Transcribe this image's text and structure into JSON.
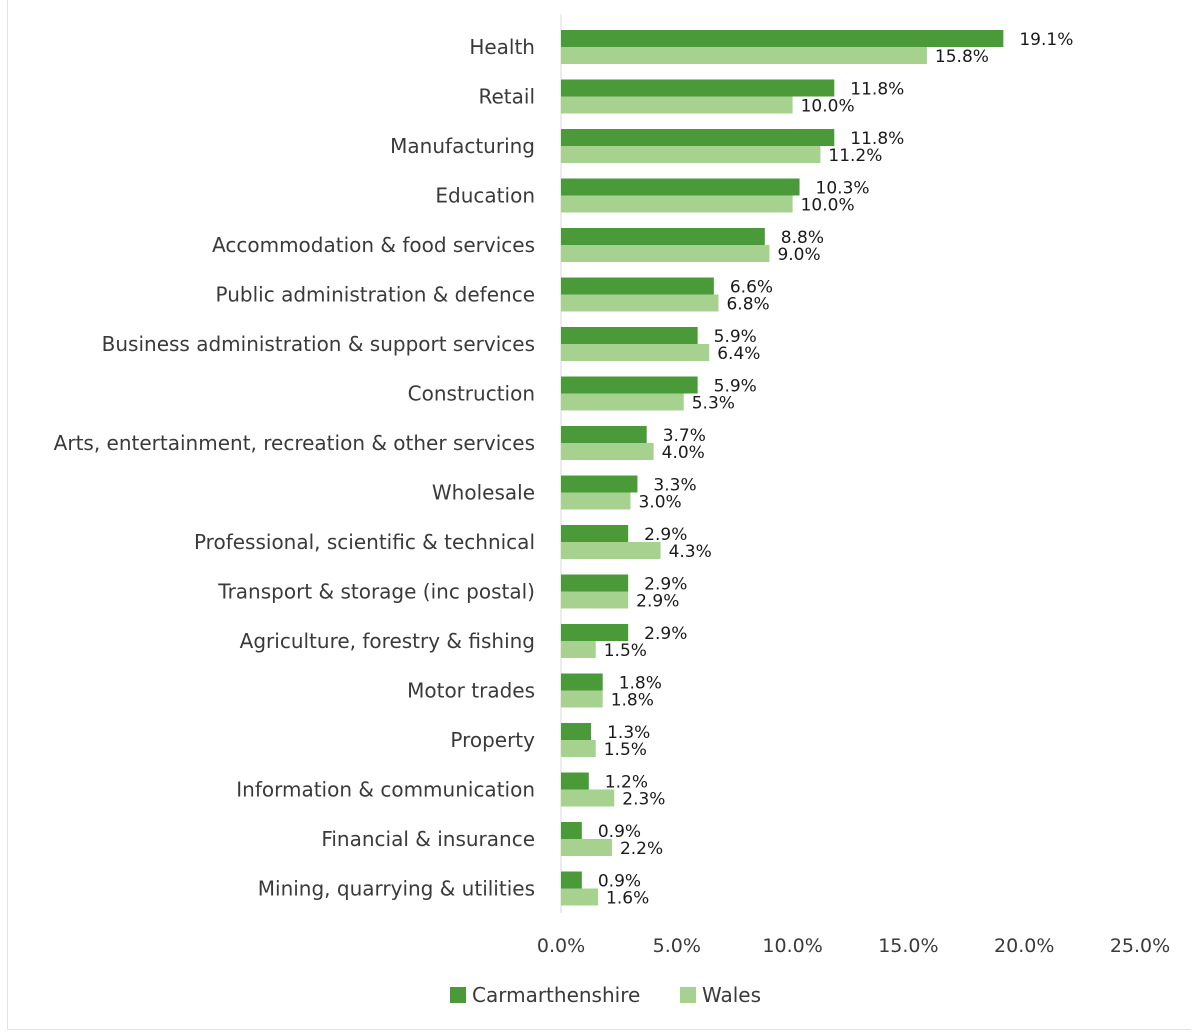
{
  "chart_data": {
    "type": "bar",
    "orientation": "horizontal",
    "title": "",
    "xlabel": "",
    "ylabel": "",
    "xlim": [
      0,
      25
    ],
    "x_ticks": [
      "0.0%",
      "5.0%",
      "10.0%",
      "15.0%",
      "20.0%",
      "25.0%"
    ],
    "grid": false,
    "legend_position": "bottom",
    "categories": [
      "Health",
      "Retail",
      "Manufacturing",
      "Education",
      "Accommodation & food services",
      "Public administration & defence",
      "Business administration & support services",
      "Construction",
      "Arts, entertainment, recreation & other services",
      "Wholesale",
      "Professional, scientific & technical",
      "Transport & storage (inc postal)",
      "Agriculture, forestry & fishing",
      "Motor trades",
      "Property",
      "Information & communication",
      "Financial & insurance",
      "Mining, quarrying & utilities"
    ],
    "series": [
      {
        "name": "Carmarthenshire",
        "color": "#4a9a3a",
        "values": [
          19.1,
          11.8,
          11.8,
          10.3,
          8.8,
          6.6,
          5.9,
          5.9,
          3.7,
          3.3,
          2.9,
          2.9,
          2.9,
          1.8,
          1.3,
          1.2,
          0.9,
          0.9
        ],
        "labels": [
          "19.1%",
          "11.8%",
          "11.8%",
          "10.3%",
          "8.8%",
          "6.6%",
          "5.9%",
          "5.9%",
          "3.7%",
          "3.3%",
          "2.9%",
          "2.9%",
          "2.9%",
          "1.8%",
          "1.3%",
          "1.2%",
          "0.9%",
          "0.9%"
        ]
      },
      {
        "name": "Wales",
        "color": "#a6d18e",
        "values": [
          15.8,
          10.0,
          11.2,
          10.0,
          9.0,
          6.8,
          6.4,
          5.3,
          4.0,
          3.0,
          4.3,
          2.9,
          1.5,
          1.8,
          1.5,
          2.3,
          2.2,
          1.6
        ],
        "labels": [
          "15.8%",
          "10.0%",
          "11.2%",
          "10.0%",
          "9.0%",
          "6.8%",
          "6.4%",
          "5.3%",
          "4.0%",
          "3.0%",
          "4.3%",
          "2.9%",
          "1.5%",
          "1.8%",
          "1.5%",
          "2.3%",
          "2.2%",
          "1.6%"
        ]
      }
    ]
  }
}
